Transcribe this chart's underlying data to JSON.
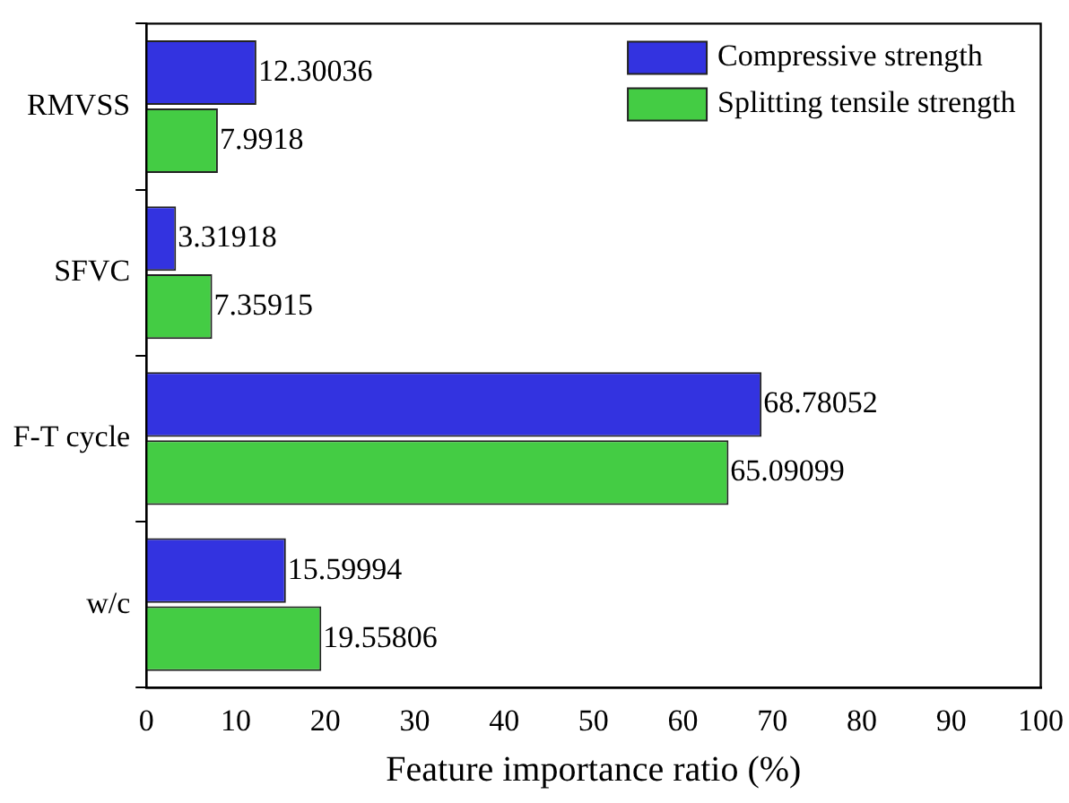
{
  "chart_data": {
    "type": "bar",
    "orientation": "horizontal",
    "xlabel": "Feature importance ratio (%)",
    "categories": [
      "RMVSS",
      "SFVC",
      "F-T cycle",
      "w/c"
    ],
    "series": [
      {
        "name": "Compressive strength",
        "color": "#3333e0",
        "values": [
          12.30036,
          3.31918,
          68.78052,
          15.59994
        ]
      },
      {
        "name": "Splitting tensile strength",
        "color": "#44cc44",
        "values": [
          7.9918,
          7.35915,
          65.09099,
          19.55806
        ]
      }
    ],
    "xlim": [
      0,
      100
    ],
    "xticks": [
      0,
      10,
      20,
      30,
      40,
      50,
      60,
      70,
      80,
      90,
      100
    ],
    "data_labels": true,
    "legend": "top right",
    "grid": false
  }
}
